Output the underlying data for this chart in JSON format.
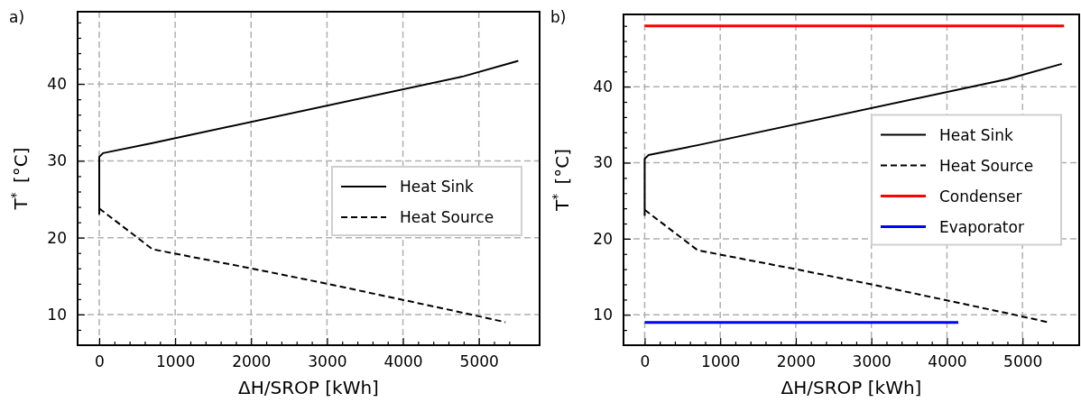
{
  "chart_data": [
    {
      "type": "line",
      "title": "a)",
      "xlabel": "ΔH/SROP [kWh]",
      "ylabel": "T$^{*}$ [°C]",
      "xlim": [
        -285,
        5800
      ],
      "ylim": [
        6,
        49.4
      ],
      "xticks": [
        0,
        {
          "value": 200,
          "label": null
        },
        {
          "value": 400,
          "label": null
        },
        {
          "value": 600,
          "label": null
        },
        {
          "value": 800,
          "label": null
        },
        1000,
        {
          "value": 1200,
          "label": null
        },
        {
          "value": 1400,
          "label": null
        },
        {
          "value": 1600,
          "label": null
        },
        {
          "value": 1800,
          "label": null
        },
        2000,
        {
          "value": 2200,
          "label": null
        },
        {
          "value": 2400,
          "label": null
        },
        {
          "value": 2600,
          "label": null
        },
        {
          "value": 2800,
          "label": null
        },
        3000,
        {
          "value": 3200,
          "label": null
        },
        {
          "value": 3400,
          "label": null
        },
        {
          "value": 3600,
          "label": null
        },
        {
          "value": 3800,
          "label": null
        },
        4000,
        {
          "value": 4200,
          "label": null
        },
        {
          "value": 4400,
          "label": null
        },
        {
          "value": 4600,
          "label": null
        },
        {
          "value": 4800,
          "label": null
        },
        5000,
        {
          "value": 5200,
          "label": null
        },
        {
          "value": 5400,
          "label": null
        }
      ],
      "yticks": [
        {
          "value": 8,
          "label": null
        },
        10,
        {
          "value": 12,
          "label": null
        },
        {
          "value": 14,
          "label": null
        },
        {
          "value": 16,
          "label": null
        },
        {
          "value": 18,
          "label": null
        },
        20,
        {
          "value": 22,
          "label": null
        },
        {
          "value": 24,
          "label": null
        },
        {
          "value": 26,
          "label": null
        },
        {
          "value": 28,
          "label": null
        },
        30,
        {
          "value": 32,
          "label": null
        },
        {
          "value": 34,
          "label": null
        },
        {
          "value": 36,
          "label": null
        },
        {
          "value": 38,
          "label": null
        },
        40,
        {
          "value": 42,
          "label": null
        },
        {
          "value": 44,
          "label": null
        },
        {
          "value": 46,
          "label": null
        },
        {
          "value": 48,
          "label": null
        }
      ],
      "grid": true,
      "legend": "right",
      "series": [
        {
          "name": "Heat Sink",
          "color": "#000000",
          "line_style": "solid",
          "x": [
            0,
            0,
            50,
            700,
            4800,
            5520
          ],
          "values": [
            23,
            30.5,
            31,
            32.3,
            41,
            43
          ]
        },
        {
          "name": "Heat Source",
          "color": "#000000",
          "line_style": "dashed",
          "x": [
            0,
            700,
            800,
            2000,
            3000,
            4000,
            4800,
            5350
          ],
          "values": [
            23.8,
            18.5,
            18.3,
            16,
            14,
            11.9,
            10.2,
            9
          ]
        }
      ]
    },
    {
      "type": "line",
      "title": "b)",
      "xlabel": "ΔH/SROP [kWh]",
      "ylabel": "T$^{*}$ [°C]",
      "xlim": [
        -280,
        5750
      ],
      "ylim": [
        6,
        49.5
      ],
      "xticks": [
        0,
        {
          "value": 200,
          "label": null
        },
        {
          "value": 400,
          "label": null
        },
        {
          "value": 600,
          "label": null
        },
        {
          "value": 800,
          "label": null
        },
        1000,
        {
          "value": 1200,
          "label": null
        },
        {
          "value": 1400,
          "label": null
        },
        {
          "value": 1600,
          "label": null
        },
        {
          "value": 1800,
          "label": null
        },
        2000,
        {
          "value": 2200,
          "label": null
        },
        {
          "value": 2400,
          "label": null
        },
        {
          "value": 2600,
          "label": null
        },
        {
          "value": 2800,
          "label": null
        },
        3000,
        {
          "value": 3200,
          "label": null
        },
        {
          "value": 3400,
          "label": null
        },
        {
          "value": 3600,
          "label": null
        },
        {
          "value": 3800,
          "label": null
        },
        4000,
        {
          "value": 4200,
          "label": null
        },
        {
          "value": 4400,
          "label": null
        },
        {
          "value": 4600,
          "label": null
        },
        {
          "value": 4800,
          "label": null
        },
        5000,
        {
          "value": 5200,
          "label": null
        },
        {
          "value": 5400,
          "label": null
        }
      ],
      "yticks": [
        {
          "value": 8,
          "label": null
        },
        10,
        {
          "value": 12,
          "label": null
        },
        {
          "value": 14,
          "label": null
        },
        {
          "value": 16,
          "label": null
        },
        {
          "value": 18,
          "label": null
        },
        20,
        {
          "value": 22,
          "label": null
        },
        {
          "value": 24,
          "label": null
        },
        {
          "value": 26,
          "label": null
        },
        {
          "value": 28,
          "label": null
        },
        30,
        {
          "value": 32,
          "label": null
        },
        {
          "value": 34,
          "label": null
        },
        {
          "value": 36,
          "label": null
        },
        {
          "value": 38,
          "label": null
        },
        40,
        {
          "value": 42,
          "label": null
        },
        {
          "value": 44,
          "label": null
        },
        {
          "value": 46,
          "label": null
        },
        {
          "value": 48,
          "label": null
        }
      ],
      "grid": true,
      "legend": "right",
      "series": [
        {
          "name": "Heat Sink",
          "color": "#000000",
          "line_style": "solid",
          "x": [
            0,
            0,
            50,
            700,
            4800,
            5520
          ],
          "values": [
            23,
            30.5,
            31,
            32.3,
            41,
            43
          ]
        },
        {
          "name": "Heat Source",
          "color": "#000000",
          "line_style": "dashed",
          "x": [
            0,
            700,
            800,
            2000,
            3000,
            4000,
            4800,
            5350
          ],
          "values": [
            23.8,
            18.5,
            18.3,
            16,
            14,
            11.9,
            10.2,
            9
          ]
        },
        {
          "name": "Condenser",
          "color": "#ff0000",
          "line_style": "solid",
          "x": [
            0,
            5550
          ],
          "values": [
            48,
            48
          ]
        },
        {
          "name": "Evaporator",
          "color": "#0000ff",
          "line_style": "solid",
          "x": [
            0,
            4150
          ],
          "values": [
            9,
            9
          ]
        }
      ]
    }
  ]
}
